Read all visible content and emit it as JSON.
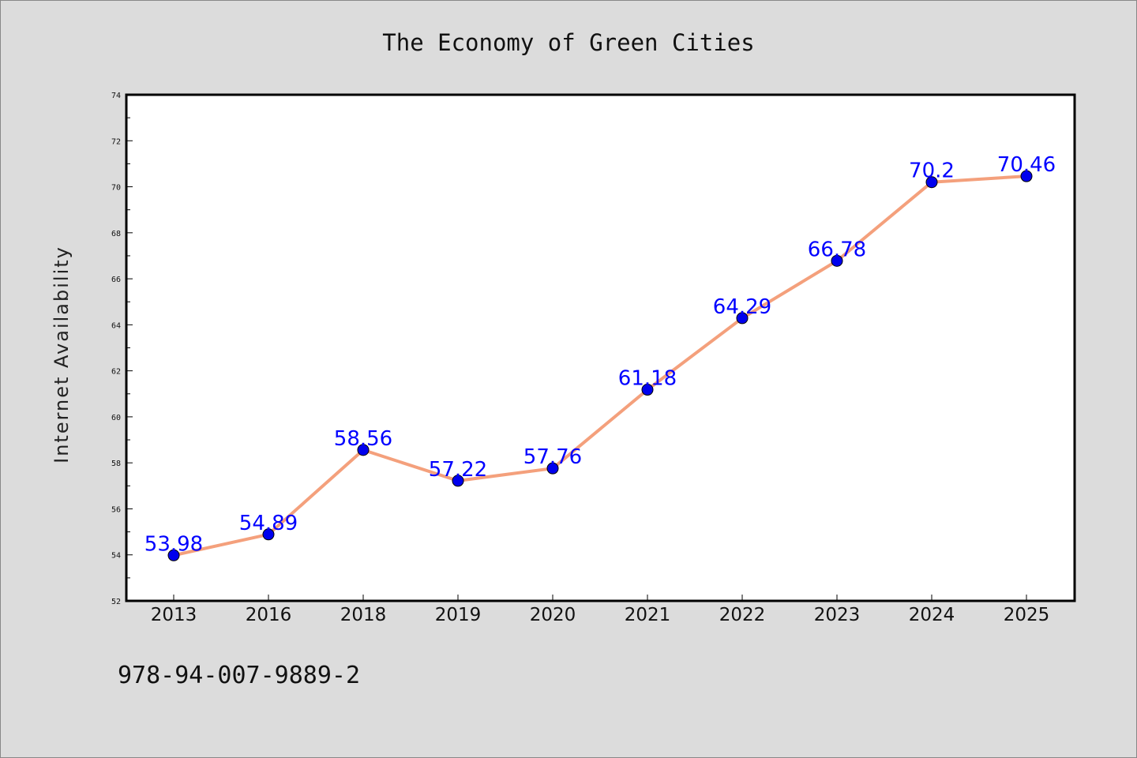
{
  "chart_data": {
    "type": "line",
    "title": "The Economy of Green Cities",
    "xlabel": "",
    "ylabel": "Internet Availability",
    "categories": [
      "2013",
      "2016",
      "2018",
      "2019",
      "2020",
      "2021",
      "2022",
      "2023",
      "2024",
      "2025"
    ],
    "series": [
      {
        "values": [
          53.98,
          54.89,
          58.56,
          57.22,
          57.76,
          61.18,
          64.29,
          66.78,
          70.2,
          70.46
        ],
        "data_labels": [
          "53.98",
          "54.89",
          "58.56",
          "57.22",
          "57.76",
          "61.18",
          "64.29",
          "66.78",
          "70.2",
          "70.46"
        ],
        "line_color": "#f4a07c",
        "marker_color": "#0000ee"
      }
    ],
    "ylim": [
      52,
      74
    ],
    "yticks": [
      52,
      54,
      56,
      58,
      60,
      62,
      64,
      66,
      68,
      70,
      72,
      74
    ],
    "grid": false,
    "legend": "none"
  },
  "footer_text": "978-94-007-9889-2"
}
